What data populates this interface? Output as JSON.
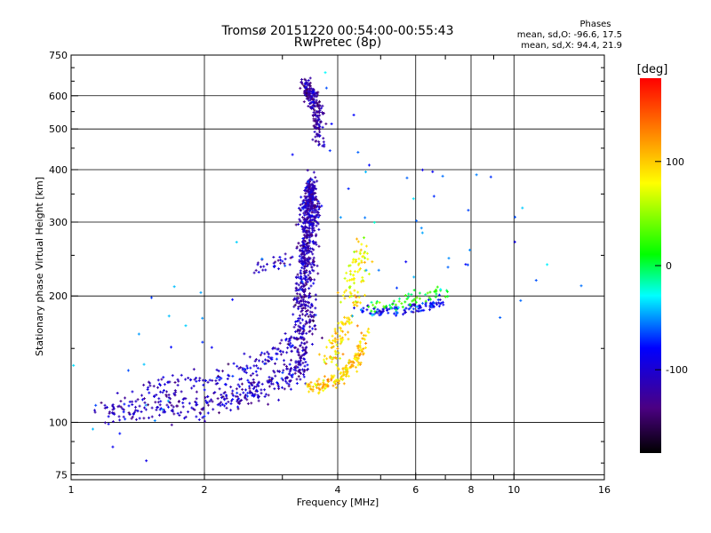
{
  "chart_data": {
    "type": "scatter",
    "title": "Tromsø 20151220 00:54:00-00:55:43",
    "subtitle": "RwPretec (8p)",
    "xlabel": "Frequency [MHz]",
    "ylabel": "Stationary phase Virtual Height [km]",
    "x_scale": "log",
    "y_scale": "log",
    "xlim": [
      1,
      16
    ],
    "ylim": [
      73,
      750
    ],
    "x_ticks": [
      "1",
      "2",
      "4",
      "6",
      "8",
      "10",
      "16"
    ],
    "y_ticks": [
      "75",
      "100",
      "200",
      "300",
      "400",
      "500",
      "600",
      "750"
    ],
    "grid": true,
    "phase_info": {
      "heading": "Phases",
      "o_line": "mean, sd,O: -96.6, 17.5",
      "x_line": "mean, sd,X:  94.4, 21.9"
    },
    "colorbar": {
      "label": "[deg]",
      "ticks": [
        "100",
        "0",
        "-100"
      ],
      "range": [
        -180,
        180
      ],
      "colormap": "rainbow"
    },
    "clusters": [
      {
        "x": [
          1.15,
          1.35,
          1.6,
          1.9,
          2.2,
          2.5,
          2.8,
          3.1,
          3.3
        ],
        "y": [
          106,
          107,
          111,
          110,
          112,
          118,
          124,
          130,
          137
        ],
        "spread": 0.04,
        "n": 350,
        "phase": -110
      },
      {
        "x": [
          1.5,
          1.8,
          2.1,
          2.4,
          2.7,
          3.0,
          3.2
        ],
        "y": [
          120,
          124,
          127,
          133,
          140,
          150,
          160
        ],
        "spread": 0.03,
        "n": 140,
        "phase": -105
      },
      {
        "x": [
          3.3,
          3.3,
          3.35,
          3.4,
          3.45,
          3.5
        ],
        "y": [
          130,
          180,
          240,
          300,
          340,
          370
        ],
        "spread": 0.03,
        "n": 520,
        "phase": -112
      },
      {
        "x": [
          3.5,
          3.45,
          3.45,
          3.5,
          3.55
        ],
        "y": [
          160,
          210,
          260,
          300,
          330
        ],
        "spread": 0.035,
        "n": 220,
        "phase": -115
      },
      {
        "x": [
          3.35,
          3.5,
          3.6,
          3.65
        ],
        "y": [
          640,
          600,
          540,
          470
        ],
        "spread": 0.025,
        "n": 220,
        "phase": -120
      },
      {
        "x": [
          3.4,
          3.7,
          4.0,
          4.3,
          4.5,
          4.65
        ],
        "y": [
          121,
          123,
          128,
          135,
          148,
          165
        ],
        "spread": 0.02,
        "n": 170,
        "phase": 100
      },
      {
        "x": [
          3.8,
          4.0,
          4.2,
          4.4
        ],
        "y": [
          140,
          155,
          175,
          200
        ],
        "spread": 0.04,
        "n": 90,
        "phase": 95
      },
      {
        "x": [
          4.2,
          4.3,
          4.5,
          4.6
        ],
        "y": [
          200,
          220,
          240,
          260
        ],
        "spread": 0.04,
        "n": 70,
        "phase": 80
      },
      {
        "x": [
          4.3,
          4.8,
          5.3,
          5.8,
          6.4,
          7.0
        ],
        "y": [
          185,
          184,
          185,
          187,
          190,
          195
        ],
        "spread": 0.015,
        "n": 110,
        "phase": -85
      },
      {
        "x": [
          4.6,
          5.2,
          5.8,
          6.4,
          7.2
        ],
        "y": [
          190,
          192,
          196,
          200,
          205
        ],
        "spread": 0.02,
        "n": 60,
        "phase": 20
      },
      {
        "x": [
          2.6,
          2.9,
          3.1
        ],
        "y": [
          235,
          240,
          245
        ],
        "spread": 0.02,
        "n": 30,
        "phase": -110
      },
      {
        "x": [
          1.05,
          1.4,
          1.7,
          2.3,
          4.2,
          4.7,
          6.3,
          7.2,
          8.5,
          11.5
        ],
        "y": [
          98,
          90,
          210,
          150,
          620,
          300,
          270,
          330,
          250,
          270
        ],
        "spread": 0.25,
        "n": 70,
        "phase": -60
      }
    ]
  }
}
